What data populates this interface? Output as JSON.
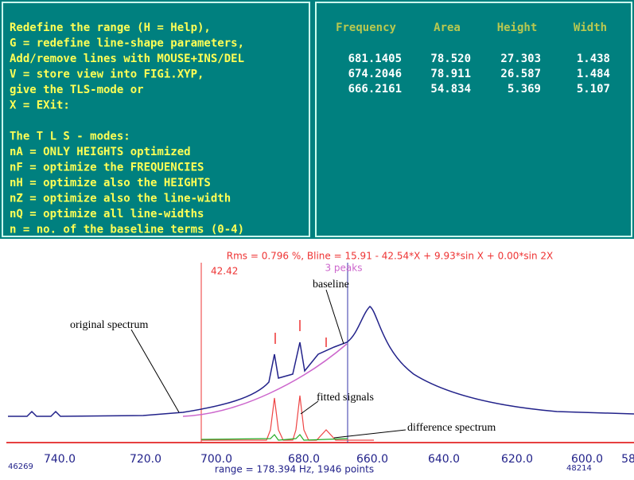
{
  "left_panel": {
    "lines": [
      "Redefine the range (H = Help),",
      "G = redefine line-shape parameters,",
      "Add/remove lines with MOUSE+INS/DEL",
      "V = store view into FIGi.XYP,",
      "give the TLS-mode or",
      "X = EXit:",
      "",
      "The T L S - modes:",
      "nA = ONLY HEIGHTS optimized",
      "nF = optimize the FREQUENCIES",
      "nH = optimize also the HEIGHTS",
      "nZ = optimize also the line-width",
      "nQ = optimize all line-widths",
      "n = no. of the baseline terms (0-4)"
    ]
  },
  "table": {
    "headers": [
      "Frequency",
      "Area",
      "Height",
      "Width"
    ],
    "rows": [
      [
        "681.1405",
        "78.520",
        "27.303",
        "1.438"
      ],
      [
        "674.2046",
        "78.911",
        "26.587",
        "1.484"
      ],
      [
        "666.2161",
        "54.834",
        "5.369",
        "5.107"
      ]
    ]
  },
  "plot": {
    "title": "Rms = 0.796 %, Bline = 15.91 - 42.54*X + 9.93*sin X + 0.00*sin 2X",
    "peaks_label": "3 peaks",
    "cursor_label": "42.42",
    "x_tick_labels": [
      "740.0",
      "720.0",
      "700.0",
      "680.0",
      "660.0",
      "640.0",
      "620.0",
      "600.0",
      "58"
    ],
    "annotations": [
      "original spectrum",
      "baseline",
      "fitted signals",
      "difference spectrum"
    ]
  },
  "footer": {
    "left": "46269",
    "center": "range = 178.394 Hz, 1946 points",
    "right": "48214"
  }
}
